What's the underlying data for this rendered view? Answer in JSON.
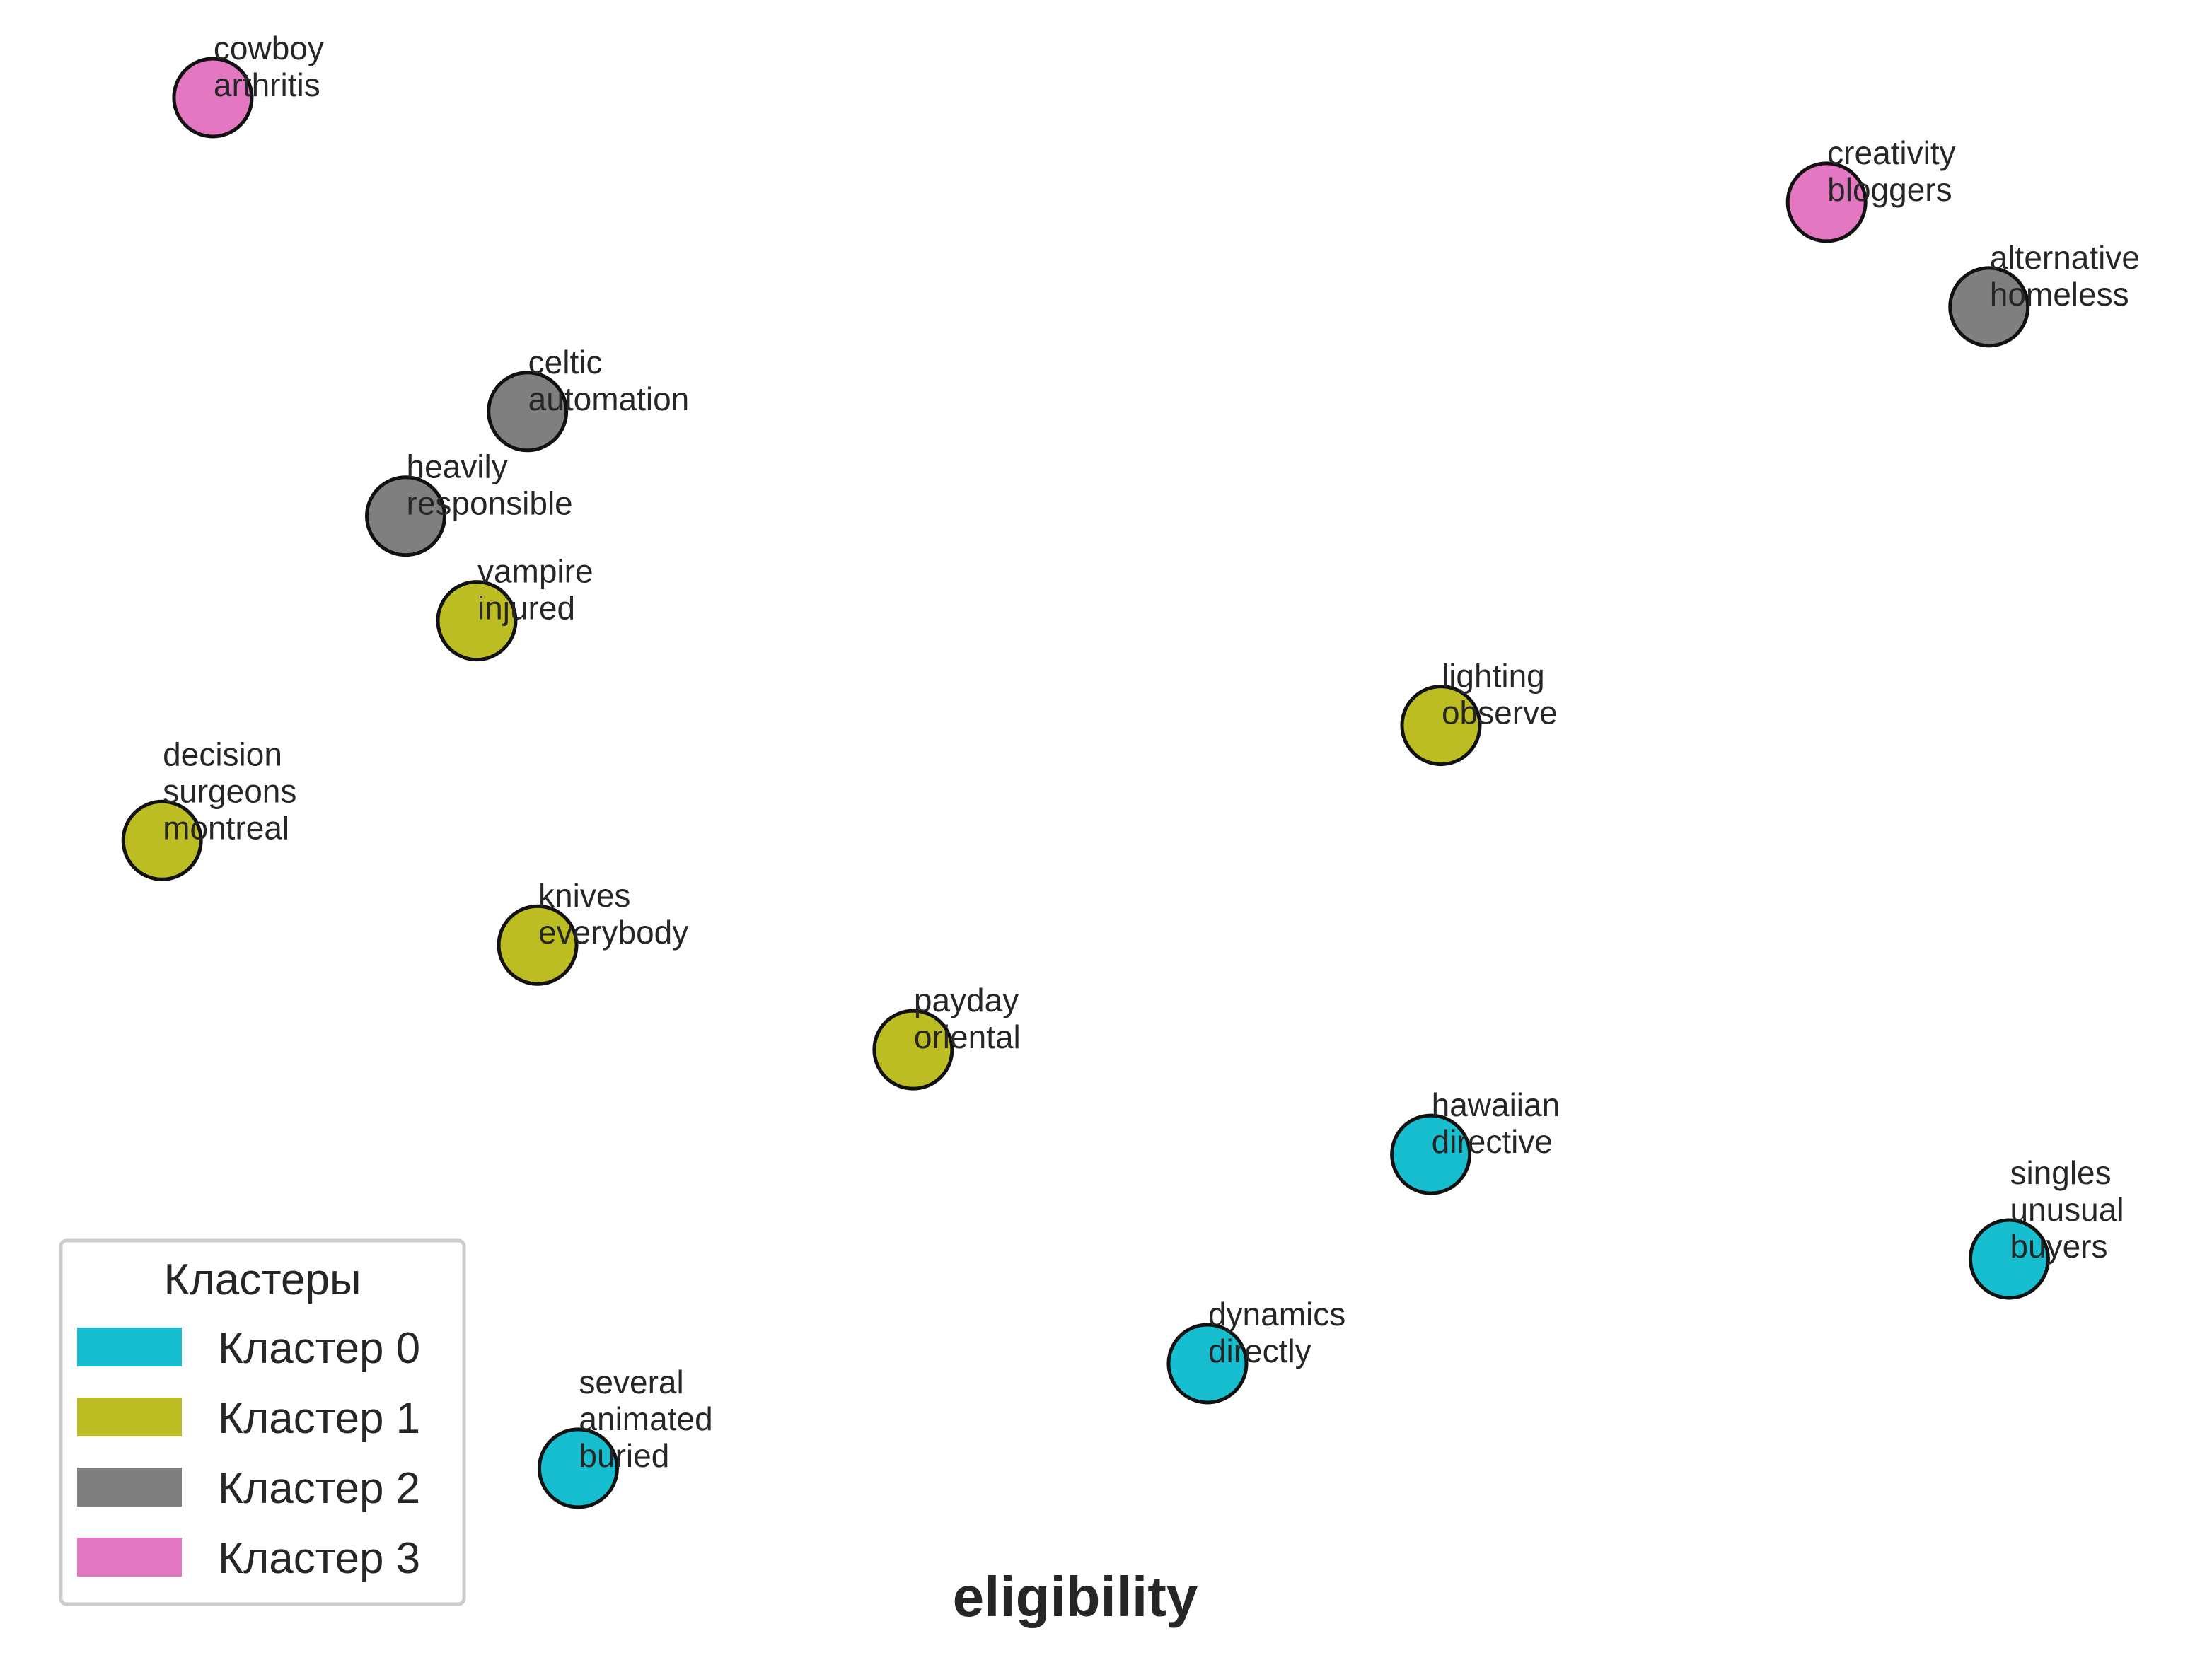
{
  "chart_data": {
    "type": "scatter",
    "title": "eligibility",
    "xlabel": "",
    "ylabel": "",
    "grid": false,
    "axes_visible": false,
    "xlim": [
      -10.5,
      10.5
    ],
    "ylim": [
      -7.5,
      7.5
    ],
    "legend": {
      "title": "Кластеры",
      "placement": "lower-left",
      "entries": [
        {
          "cluster": 0,
          "label": "Кластер 0",
          "color": "#17becf"
        },
        {
          "cluster": 1,
          "label": "Кластер 1",
          "color": "#bcbd22"
        },
        {
          "cluster": 2,
          "label": "Кластер 2",
          "color": "#7f7f7f"
        },
        {
          "cluster": 3,
          "label": "Кластер 3",
          "color": "#e377c2"
        }
      ]
    },
    "points": [
      {
        "x": -8.8,
        "y": 7.0,
        "cluster": 3,
        "label": [
          "cowboy",
          "arthritis"
        ]
      },
      {
        "x": 7.1,
        "y": 6.0,
        "cluster": 3,
        "label": [
          "creativity",
          "bloggers"
        ]
      },
      {
        "x": 8.7,
        "y": 5.0,
        "cluster": 2,
        "label": [
          "alternative",
          "homeless"
        ]
      },
      {
        "x": -5.7,
        "y": 4.0,
        "cluster": 2,
        "label": [
          "celtic",
          "automation"
        ]
      },
      {
        "x": -6.9,
        "y": 3.0,
        "cluster": 2,
        "label": [
          "heavily",
          "responsible"
        ]
      },
      {
        "x": -6.2,
        "y": 2.0,
        "cluster": 1,
        "label": [
          "vampire",
          "injured"
        ]
      },
      {
        "x": 3.3,
        "y": 1.0,
        "cluster": 1,
        "label": [
          "lighting",
          "observe"
        ]
      },
      {
        "x": -9.3,
        "y": -0.1,
        "cluster": 1,
        "label": [
          "decision",
          "surgeons",
          "montreal"
        ]
      },
      {
        "x": -5.6,
        "y": -1.1,
        "cluster": 1,
        "label": [
          "knives",
          "everybody"
        ]
      },
      {
        "x": -1.9,
        "y": -2.1,
        "cluster": 1,
        "label": [
          "payday",
          "oriental"
        ]
      },
      {
        "x": 3.2,
        "y": -3.1,
        "cluster": 0,
        "label": [
          "hawaiian",
          "directive"
        ]
      },
      {
        "x": 8.9,
        "y": -4.1,
        "cluster": 0,
        "label": [
          "singles",
          "unusual",
          "buyers"
        ]
      },
      {
        "x": 1.0,
        "y": -5.1,
        "cluster": 0,
        "label": [
          "dynamics",
          "directly"
        ]
      },
      {
        "x": -5.2,
        "y": -6.1,
        "cluster": 0,
        "label": [
          "several",
          "animated",
          "buried"
        ]
      }
    ]
  }
}
